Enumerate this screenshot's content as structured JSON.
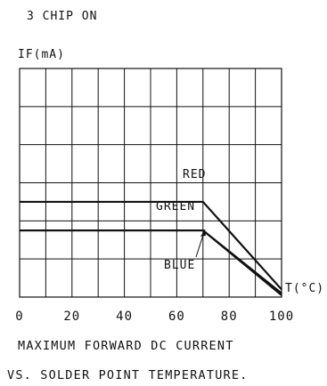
{
  "chart_data": {
    "type": "line",
    "title": "3 CHIP ON",
    "ylabel": "IF(mA)",
    "xlabel": "T(°C)",
    "xlim": [
      0,
      100
    ],
    "ylim": [
      0,
      120
    ],
    "x_ticks": [
      "0",
      "20",
      "40",
      "60",
      "80",
      "100"
    ],
    "y_ticks": [
      0,
      20,
      40,
      60,
      80,
      100,
      120
    ],
    "grid": true,
    "series": [
      {
        "name": "RED",
        "x": [
          0,
          70,
          100
        ],
        "y": [
          50,
          50,
          4
        ]
      },
      {
        "name": "GREEN",
        "x": [
          0,
          70,
          100
        ],
        "y": [
          35,
          35,
          2
        ]
      },
      {
        "name": "BLUE",
        "x": [
          0,
          70,
          100
        ],
        "y": [
          35,
          35,
          1
        ]
      }
    ],
    "caption": [
      "MAXIMUM FORWARD DC CURRENT",
      "VS. SOLDER POINT TEMPERATURE."
    ]
  }
}
